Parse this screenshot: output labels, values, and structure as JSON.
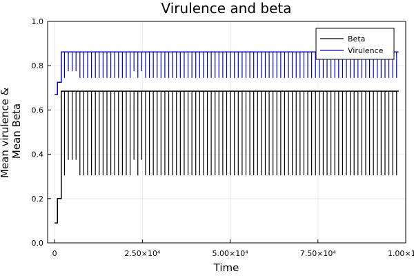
{
  "chart_data": {
    "type": "line",
    "title": "Virulence and beta",
    "xlabel": "Time",
    "ylabel_lines": [
      "Mean virulence &",
      "Mean Beta"
    ],
    "xlim": [
      -2000,
      100000
    ],
    "ylim": [
      0.0,
      1.0
    ],
    "x_ticks": [
      0,
      25000,
      50000,
      75000,
      100000
    ],
    "x_tick_labels": [
      "0",
      "2.50×10⁴",
      "5.00×10⁴",
      "7.50×10⁴",
      "1.00×10⁵"
    ],
    "y_ticks": [
      0.0,
      0.2,
      0.4,
      0.6,
      0.8,
      1.0
    ],
    "y_tick_labels": [
      "0.0",
      "0.2",
      "0.4",
      "0.6",
      "0.8",
      "1.0"
    ],
    "grid": true,
    "legend_position": "top-right",
    "series": [
      {
        "name": "Beta",
        "color": "#000000",
        "initial_steps": [
          [
            0,
            0.09
          ],
          [
            800,
            0.2
          ],
          [
            1900,
            0.685
          ]
        ],
        "steady_value": 0.685,
        "spike_value": 0.305,
        "short_spike_value": 0.375,
        "x_end": 98000
      },
      {
        "name": "Virulence",
        "color": "#0000cc",
        "initial_steps": [
          [
            0,
            0.67
          ],
          [
            800,
            0.725
          ],
          [
            1900,
            0.862
          ]
        ],
        "steady_value": 0.862,
        "spike_value": 0.745,
        "short_spike_value": 0.775,
        "x_end": 98000
      }
    ],
    "spike_times": [
      2800,
      3900,
      5000,
      6100,
      7200,
      8300,
      9400,
      10500,
      11600,
      12700,
      13800,
      14900,
      16000,
      17100,
      18200,
      19300,
      20400,
      21500,
      22600,
      23700,
      24800,
      25900,
      27000,
      28100,
      29200,
      30300,
      31400,
      32500,
      33600,
      34700,
      35800,
      36900,
      38000,
      39100,
      40200,
      41300,
      42400,
      43500,
      44600,
      45700,
      46800,
      47900,
      49000,
      50100,
      51200,
      52300,
      53400,
      54500,
      55600,
      56700,
      57800,
      58900,
      60000,
      61100,
      62200,
      63300,
      64400,
      65500,
      66600,
      67700,
      68800,
      69900,
      71000,
      72100,
      73200,
      74300,
      75400,
      76500,
      77600,
      78700,
      79800,
      80900,
      82000,
      83100,
      84200,
      85300,
      86400,
      87500,
      88600,
      89700,
      90800,
      91900,
      93000,
      94100,
      95200,
      96300,
      97400
    ],
    "short_spike_times": [
      3900,
      5000,
      6100,
      22600,
      24800
    ]
  }
}
